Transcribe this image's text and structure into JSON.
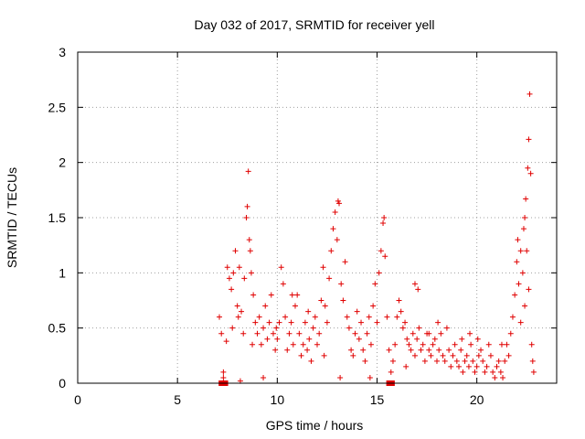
{
  "chart_data": {
    "type": "scatter",
    "title": "Day 032 of 2017, SRMTID for receiver yell",
    "xlabel": "GPS time / hours",
    "ylabel": "SRMTID / TECUs",
    "xlim": [
      0,
      24
    ],
    "ylim": [
      0,
      3
    ],
    "xticks": [
      0,
      5,
      10,
      15,
      20
    ],
    "yticks": [
      0,
      0.5,
      1,
      1.5,
      2,
      2.5,
      3
    ],
    "xtick_labels": [
      "0",
      "5",
      "10",
      "15",
      "20"
    ],
    "ytick_labels": [
      "0",
      "0.5",
      "1",
      "1.5",
      "2",
      "2.5",
      "3"
    ],
    "grid": true,
    "marker": "+",
    "color": "#e00000",
    "series": [
      {
        "name": "SRMTID",
        "points": [
          [
            7.1,
            0.6
          ],
          [
            7.2,
            0.45
          ],
          [
            7.3,
            0.1
          ],
          [
            7.45,
            0.38
          ],
          [
            7.5,
            1.05
          ],
          [
            7.6,
            0.95
          ],
          [
            7.7,
            0.85
          ],
          [
            7.75,
            0.5
          ],
          [
            7.8,
            1.0
          ],
          [
            7.9,
            1.2
          ],
          [
            8.0,
            0.7
          ],
          [
            8.05,
            0.6
          ],
          [
            8.1,
            1.05
          ],
          [
            8.2,
            0.65
          ],
          [
            8.3,
            0.45
          ],
          [
            8.35,
            0.95
          ],
          [
            8.45,
            1.5
          ],
          [
            8.5,
            1.6
          ],
          [
            8.55,
            1.92
          ],
          [
            8.6,
            1.3
          ],
          [
            8.65,
            1.2
          ],
          [
            8.7,
            1.0
          ],
          [
            8.8,
            0.8
          ],
          [
            8.9,
            0.55
          ],
          [
            9.0,
            0.45
          ],
          [
            9.1,
            0.6
          ],
          [
            9.2,
            0.35
          ],
          [
            9.3,
            0.5
          ],
          [
            9.4,
            0.7
          ],
          [
            9.5,
            0.4
          ],
          [
            9.6,
            0.55
          ],
          [
            9.7,
            0.8
          ],
          [
            9.8,
            0.45
          ],
          [
            9.9,
            0.3
          ],
          [
            10.0,
            0.4
          ],
          [
            10.1,
            0.55
          ],
          [
            10.2,
            1.05
          ],
          [
            10.3,
            0.9
          ],
          [
            10.4,
            0.6
          ],
          [
            10.5,
            0.3
          ],
          [
            10.6,
            0.45
          ],
          [
            10.7,
            0.55
          ],
          [
            10.8,
            0.35
          ],
          [
            10.9,
            0.7
          ],
          [
            11.0,
            0.8
          ],
          [
            11.1,
            0.45
          ],
          [
            11.2,
            0.25
          ],
          [
            11.3,
            0.35
          ],
          [
            11.4,
            0.55
          ],
          [
            11.5,
            0.3
          ],
          [
            11.6,
            0.4
          ],
          [
            11.7,
            0.2
          ],
          [
            11.8,
            0.5
          ],
          [
            11.9,
            0.6
          ],
          [
            12.0,
            0.35
          ],
          [
            12.1,
            0.45
          ],
          [
            12.2,
            0.75
          ],
          [
            12.3,
            1.05
          ],
          [
            12.4,
            0.7
          ],
          [
            12.5,
            0.55
          ],
          [
            12.6,
            0.95
          ],
          [
            12.7,
            1.2
          ],
          [
            12.8,
            1.4
          ],
          [
            12.9,
            1.55
          ],
          [
            13.0,
            1.3
          ],
          [
            13.05,
            1.65
          ],
          [
            13.1,
            1.63
          ],
          [
            13.2,
            0.9
          ],
          [
            13.3,
            0.75
          ],
          [
            13.4,
            1.1
          ],
          [
            13.5,
            0.6
          ],
          [
            13.6,
            0.5
          ],
          [
            13.7,
            0.3
          ],
          [
            13.8,
            0.25
          ],
          [
            13.9,
            0.45
          ],
          [
            14.0,
            0.65
          ],
          [
            14.1,
            0.4
          ],
          [
            14.2,
            0.55
          ],
          [
            14.3,
            0.3
          ],
          [
            14.4,
            0.2
          ],
          [
            14.5,
            0.45
          ],
          [
            14.6,
            0.6
          ],
          [
            14.7,
            0.35
          ],
          [
            14.8,
            0.7
          ],
          [
            14.9,
            0.9
          ],
          [
            15.0,
            0.55
          ],
          [
            15.1,
            1.0
          ],
          [
            15.2,
            1.2
          ],
          [
            15.3,
            1.45
          ],
          [
            15.35,
            1.5
          ],
          [
            15.4,
            1.15
          ],
          [
            15.5,
            0.6
          ],
          [
            15.6,
            0.3
          ],
          [
            15.7,
            0.1
          ],
          [
            15.8,
            0.2
          ],
          [
            15.9,
            0.35
          ],
          [
            16.0,
            0.6
          ],
          [
            16.1,
            0.75
          ],
          [
            16.2,
            0.65
          ],
          [
            16.3,
            0.5
          ],
          [
            16.4,
            0.55
          ],
          [
            16.5,
            0.4
          ],
          [
            16.6,
            0.35
          ],
          [
            16.7,
            0.3
          ],
          [
            16.8,
            0.45
          ],
          [
            16.9,
            0.25
          ],
          [
            17.0,
            0.4
          ],
          [
            17.1,
            0.5
          ],
          [
            17.2,
            0.3
          ],
          [
            17.3,
            0.35
          ],
          [
            17.4,
            0.2
          ],
          [
            17.5,
            0.45
          ],
          [
            17.6,
            0.3
          ],
          [
            17.7,
            0.25
          ],
          [
            17.8,
            0.35
          ],
          [
            17.9,
            0.4
          ],
          [
            18.0,
            0.2
          ],
          [
            18.1,
            0.3
          ],
          [
            18.2,
            0.45
          ],
          [
            18.3,
            0.25
          ],
          [
            18.4,
            0.2
          ],
          [
            18.5,
            0.5
          ],
          [
            18.6,
            0.3
          ],
          [
            18.7,
            0.15
          ],
          [
            18.8,
            0.25
          ],
          [
            18.9,
            0.35
          ],
          [
            19.0,
            0.2
          ],
          [
            19.1,
            0.15
          ],
          [
            19.2,
            0.3
          ],
          [
            19.3,
            0.1
          ],
          [
            19.4,
            0.2
          ],
          [
            19.5,
            0.25
          ],
          [
            19.6,
            0.15
          ],
          [
            19.7,
            0.35
          ],
          [
            19.8,
            0.2
          ],
          [
            19.9,
            0.1
          ],
          [
            20.0,
            0.15
          ],
          [
            20.1,
            0.25
          ],
          [
            20.2,
            0.3
          ],
          [
            20.3,
            0.2
          ],
          [
            20.4,
            0.1
          ],
          [
            20.5,
            0.15
          ],
          [
            20.6,
            0.35
          ],
          [
            20.7,
            0.25
          ],
          [
            20.8,
            0.1
          ],
          [
            20.9,
            0.05
          ],
          [
            21.0,
            0.15
          ],
          [
            21.1,
            0.2
          ],
          [
            21.2,
            0.1
          ],
          [
            21.3,
            0.05
          ],
          [
            21.4,
            0.2
          ],
          [
            21.5,
            0.35
          ],
          [
            21.6,
            0.25
          ],
          [
            21.7,
            0.45
          ],
          [
            21.8,
            0.6
          ],
          [
            21.9,
            0.8
          ],
          [
            22.0,
            1.1
          ],
          [
            22.05,
            1.3
          ],
          [
            22.1,
            0.9
          ],
          [
            22.2,
            1.2
          ],
          [
            22.3,
            1.0
          ],
          [
            22.35,
            1.4
          ],
          [
            22.4,
            1.5
          ],
          [
            22.45,
            1.67
          ],
          [
            22.5,
            1.2
          ],
          [
            22.55,
            1.95
          ],
          [
            22.6,
            2.21
          ],
          [
            22.65,
            2.62
          ],
          [
            22.7,
            1.9
          ],
          [
            22.75,
            0.35
          ],
          [
            22.8,
            0.2
          ],
          [
            22.85,
            0.1
          ],
          [
            22.6,
            0.85
          ],
          [
            22.4,
            0.7
          ],
          [
            22.2,
            0.55
          ],
          [
            7.3,
            0.05
          ],
          [
            8.15,
            0.02
          ],
          [
            9.3,
            0.05
          ],
          [
            8.75,
            0.35
          ],
          [
            9.95,
            0.5
          ],
          [
            10.75,
            0.8
          ],
          [
            11.55,
            0.65
          ],
          [
            12.35,
            0.25
          ],
          [
            13.15,
            0.05
          ],
          [
            14.65,
            0.05
          ],
          [
            16.45,
            0.15
          ],
          [
            16.9,
            0.9
          ],
          [
            17.05,
            0.85
          ],
          [
            17.6,
            0.45
          ],
          [
            18.05,
            0.55
          ],
          [
            19.25,
            0.4
          ],
          [
            19.65,
            0.45
          ],
          [
            20.05,
            0.4
          ],
          [
            21.25,
            0.35
          ]
        ],
        "squares": [
          [
            7.2,
            0
          ],
          [
            7.4,
            0
          ],
          [
            15.6,
            0
          ],
          [
            15.75,
            0
          ]
        ]
      }
    ]
  }
}
